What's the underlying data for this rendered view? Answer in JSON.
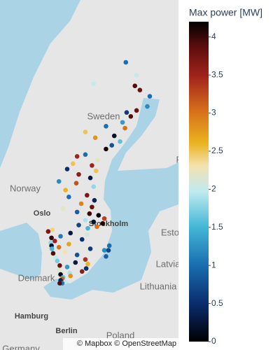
{
  "chart_data": {
    "type": "scattermap",
    "colorbar_title": "Max power [MW]",
    "map_labels": [
      "Sweden",
      "Norway",
      "Oslo",
      "Stockholm",
      "Finl",
      "Esto",
      "Latvia",
      "Lithuania",
      "Denmark",
      "Hamburg",
      "Berlin",
      "Poland",
      "Germany"
    ],
    "attribution": "© Mapbox © OpenStreetMap",
    "clim": [
      0,
      4.2
    ],
    "cticks": [
      0,
      0.5,
      1,
      1.5,
      2,
      2.5,
      3,
      3.5,
      4
    ],
    "colorscale": [
      [
        0,
        "#000000"
      ],
      [
        0.12,
        "#0a2d6e"
      ],
      [
        0.24,
        "#1a6fb0"
      ],
      [
        0.36,
        "#45b8d6"
      ],
      [
        0.47,
        "#c0eaf0"
      ],
      [
        0.55,
        "#f3e2b0"
      ],
      [
        0.62,
        "#eab420"
      ],
      [
        0.72,
        "#d6701a"
      ],
      [
        0.83,
        "#a2231c"
      ],
      [
        0.92,
        "#5e0e0e"
      ],
      [
        1,
        "#000000"
      ]
    ],
    "lat": [
      67.9,
      67.3,
      66.8,
      66.6,
      66.9,
      66.3,
      65.8,
      65.6,
      65.5,
      65.3,
      65.0,
      64.8,
      64.7,
      64.5,
      64.3,
      64.2,
      64.0,
      63.8,
      63.6,
      63.3,
      63.2,
      63.0,
      62.8,
      62.7,
      62.5,
      62.4,
      62.2,
      62.0,
      61.8,
      61.7,
      61.5,
      61.3,
      61.0,
      60.9,
      60.7,
      60.5,
      60.3,
      60.2,
      60.0,
      59.9,
      59.8,
      59.6,
      59.5,
      59.4,
      59.3,
      59.2,
      59.1,
      59.0,
      58.9,
      58.8,
      58.7,
      58.6,
      58.5,
      58.4,
      58.3,
      58.2,
      58.1,
      58.0,
      57.9,
      57.8,
      57.7,
      57.7,
      57.6,
      57.5,
      57.4,
      57.3,
      57.2,
      57.1,
      57.0,
      56.9,
      56.8,
      56.7,
      56.6,
      56.5,
      56.4,
      56.3,
      56.2,
      56.1,
      56.0,
      55.9,
      55.8,
      55.7,
      55.6,
      55.5,
      55.4,
      55.4,
      57.9,
      57.6
    ],
    "lon": [
      20.9,
      22.2,
      22.0,
      22.6,
      17.0,
      23.8,
      23.5,
      22.2,
      21.0,
      21.5,
      20.5,
      18.5,
      20.8,
      16.0,
      19.5,
      17.2,
      20.2,
      19.2,
      18.5,
      16.0,
      15.0,
      17.5,
      14.5,
      16.8,
      13.8,
      17.3,
      15.2,
      16.6,
      12.8,
      14.9,
      17.0,
      13.6,
      16.2,
      14.0,
      17.1,
      15.5,
      16.8,
      13.3,
      15.0,
      16.5,
      17.6,
      18.3,
      16.0,
      17.0,
      18.1,
      15.2,
      17.4,
      16.3,
      12.0,
      11.5,
      14.2,
      16.2,
      13.0,
      11.9,
      15.6,
      12.3,
      11.8,
      14.0,
      11.9,
      12.8,
      11.95,
      16.6,
      18.3,
      13.5,
      12.1,
      15.0,
      18.5,
      12.4,
      16.0,
      12.6,
      14.8,
      16.3,
      12.9,
      13.8,
      16.1,
      12.8,
      15.6,
      14.1,
      13.0,
      14.2,
      13.3,
      13.2,
      13.0,
      13.6,
      13.2,
      12.9,
      18.9,
      18.8
    ],
    "values": [
      1.0,
      2.0,
      3.9,
      3.8,
      2.0,
      1.0,
      1.2,
      3.8,
      0.6,
      3.9,
      1.3,
      1.0,
      3.0,
      2.5,
      0.2,
      2.8,
      1.6,
      0.8,
      4.1,
      1.0,
      3.5,
      2.2,
      2.5,
      3.5,
      0.5,
      2.5,
      3.6,
      0.3,
      1.2,
      3.2,
      1.8,
      2.6,
      3.7,
      1.0,
      0.4,
      2.9,
      3.8,
      2.2,
      0.9,
      4.0,
      0.1,
      3.3,
      1.9,
      0.2,
      4.1,
      0.7,
      3.0,
      1.5,
      2.4,
      3.7,
      0.3,
      2.1,
      1.1,
      4.0,
      0.5,
      3.5,
      1.8,
      2.7,
      0.2,
      3.0,
      1.5,
      0.6,
      1.2,
      2.3,
      3.9,
      0.8,
      0.9,
      2.0,
      3.4,
      1.7,
      0.3,
      2.6,
      3.8,
      1.3,
      0.5,
      2.2,
      3.6,
      1.9,
      0.1,
      2.8,
      1.6,
      3.1,
      0.4,
      2.0,
      1.1,
      3.9,
      1.0,
      0.7
    ]
  }
}
